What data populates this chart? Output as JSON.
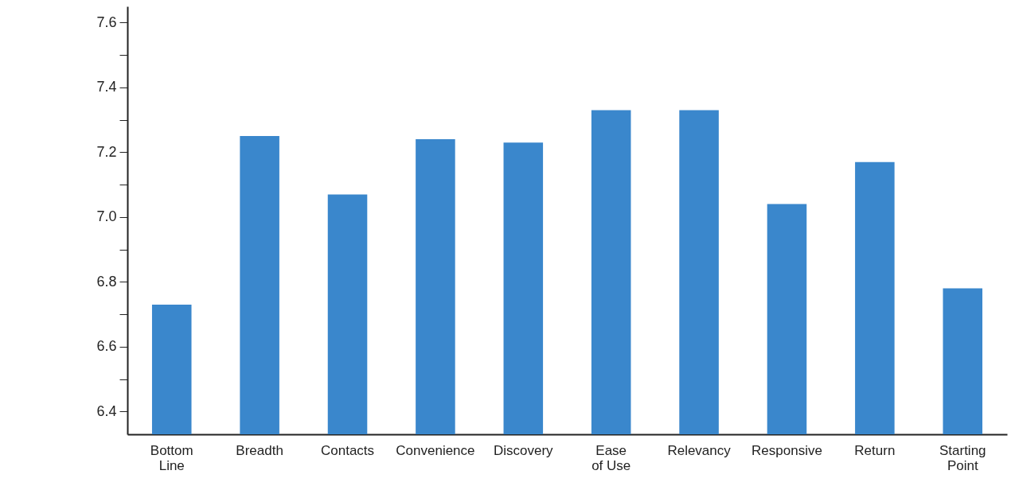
{
  "chart_data": {
    "type": "bar",
    "categories": [
      "Bottom Line",
      "Breadth",
      "Contacts",
      "Convenience",
      "Discovery",
      "Ease of Use",
      "Relevancy",
      "Responsive",
      "Return",
      "Starting Point"
    ],
    "values": [
      6.73,
      7.25,
      7.07,
      7.24,
      7.23,
      7.33,
      7.33,
      7.04,
      7.17,
      6.78
    ],
    "color": "#3a87cc",
    "ylim": [
      6.33,
      7.65
    ],
    "yticks": [
      6.4,
      {
        "value": 6.5,
        "label": null
      },
      6.6,
      {
        "value": 6.7,
        "label": null
      },
      6.8,
      {
        "value": 6.9,
        "label": null
      },
      {
        "value": 7,
        "label": "7.0"
      },
      {
        "value": 7.1,
        "label": null
      },
      7.2,
      {
        "value": 7.3,
        "label": null
      },
      7.4,
      {
        "value": 7.5,
        "label": null
      },
      7.6
    ],
    "grid": false
  }
}
